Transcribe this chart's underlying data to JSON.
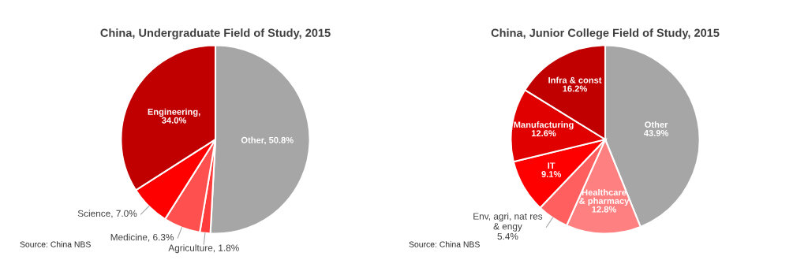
{
  "chart_data": [
    {
      "type": "pie",
      "title": "China, Undergraduate Field of Study, 2015",
      "categories": [
        "Other, 50.8%",
        "Agriculture, 1.8%",
        "Medicine, 6.3%",
        "Science, 7.0%",
        "Engineering,\n34.0%"
      ],
      "values": [
        50.8,
        1.8,
        6.3,
        7.0,
        34.0
      ],
      "colors": [
        "#a6a6a6",
        "#ff3b3b",
        "#ff5050",
        "#ff0000",
        "#c00000"
      ],
      "annotations": [
        "Source: China NBS"
      ]
    },
    {
      "type": "pie",
      "title": "China, Junior College Field of Study, 2015",
      "categories": [
        "Other\n43.9%",
        "Healthcare\n& pharmacy\n12.8%",
        "Env, agri, nat res\n& engy\n5.4%",
        "IT\n9.1%",
        "Manufacturing\n12.6%",
        "Infra & const\n16.2%"
      ],
      "values": [
        43.9,
        12.8,
        5.4,
        9.1,
        12.6,
        16.2
      ],
      "colors": [
        "#a6a6a6",
        "#ff8080",
        "#ff5f5f",
        "#ff0000",
        "#e00000",
        "#c00000"
      ],
      "annotations": [
        "Source: China NBS"
      ]
    }
  ]
}
